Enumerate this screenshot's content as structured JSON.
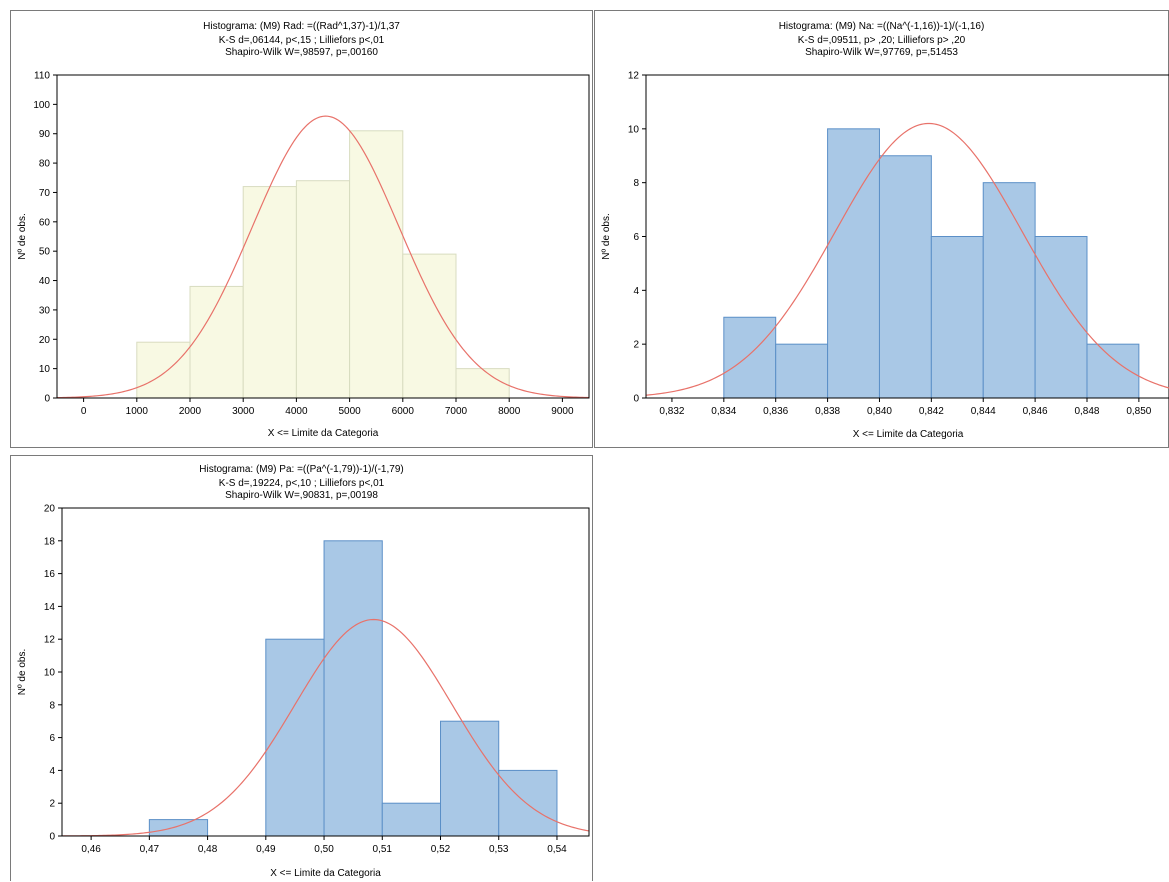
{
  "chart_data": [
    {
      "type": "bar",
      "title": "Histograma:  (M9)  Rad: =((Rad^1,37)-1)/1,37",
      "subtitle": [
        "K-S d=,06144, p<,15 ; Lilliefors p<,01",
        "Shapiro-Wilk W=,98597, p=,00160"
      ],
      "xlabel": "X <= Limite da Categoria",
      "ylabel": "Nº de obs.",
      "xlim": [
        -500,
        9500
      ],
      "ylim": [
        0,
        110
      ],
      "x_ticks": [
        0,
        1000,
        2000,
        3000,
        4000,
        5000,
        6000,
        7000,
        8000,
        9000
      ],
      "x_tick_labels": [
        "0",
        "1000",
        "2000",
        "3000",
        "4000",
        "5000",
        "6000",
        "7000",
        "8000",
        "9000"
      ],
      "y_ticks": [
        0,
        10,
        20,
        30,
        40,
        50,
        60,
        70,
        80,
        90,
        100,
        110
      ],
      "y_tick_labels": [
        "0",
        "10",
        "20",
        "30",
        "40",
        "50",
        "60",
        "70",
        "80",
        "90",
        "100",
        "110"
      ],
      "bins": [
        [
          1000,
          2000
        ],
        [
          2000,
          3000
        ],
        [
          3000,
          4000
        ],
        [
          4000,
          5000
        ],
        [
          5000,
          6000
        ],
        [
          6000,
          7000
        ],
        [
          7000,
          8000
        ]
      ],
      "values": [
        19,
        38,
        72,
        74,
        91,
        49,
        10
      ],
      "normal_fit": {
        "mean": 4550,
        "peak": 96,
        "sd": 1380
      },
      "bar_color": "#f8f9e3",
      "bar_edge": "#d8dcc0",
      "curve_color": "#e8726a",
      "grid": false
    },
    {
      "type": "bar",
      "title": "Histograma:  (M9)  Na: =((Na^(-1,16))-1)/(-1,16)",
      "subtitle": [
        "K-S d=,09511, p> ,20; Lilliefors p> ,20",
        "Shapiro-Wilk W=,97769, p=,51453"
      ],
      "xlabel": "X <= Limite da Categoria",
      "ylabel": "Nº de obs.",
      "xlim": [
        0.831,
        0.8512
      ],
      "ylim": [
        0,
        12
      ],
      "x_ticks": [
        0.832,
        0.834,
        0.836,
        0.838,
        0.84,
        0.842,
        0.844,
        0.846,
        0.848,
        0.85
      ],
      "x_tick_labels": [
        "0,832",
        "0,834",
        "0,836",
        "0,838",
        "0,840",
        "0,842",
        "0,844",
        "0,846",
        "0,848",
        "0,850"
      ],
      "y_ticks": [
        0,
        2,
        4,
        6,
        8,
        10,
        12
      ],
      "y_tick_labels": [
        "0",
        "2",
        "4",
        "6",
        "8",
        "10",
        "12"
      ],
      "bins": [
        [
          0.834,
          0.836
        ],
        [
          0.836,
          0.838
        ],
        [
          0.838,
          0.84
        ],
        [
          0.84,
          0.842
        ],
        [
          0.842,
          0.844
        ],
        [
          0.844,
          0.846
        ],
        [
          0.846,
          0.848
        ],
        [
          0.848,
          0.85
        ]
      ],
      "values": [
        3,
        2,
        10,
        9,
        6,
        8,
        6,
        2
      ],
      "normal_fit": {
        "mean": 0.8419,
        "peak": 10.2,
        "sd": 0.0036
      },
      "bar_color": "#a9c8e6",
      "bar_edge": "#5b8fc7",
      "curve_color": "#e8726a",
      "grid": false
    },
    {
      "type": "bar",
      "title": "Histograma:  (M9)  Pa: =((Pa^(-1,79))-1)/(-1,79)",
      "subtitle": [
        "K-S d=,19224, p<,10 ; Lilliefors p<,01",
        "Shapiro-Wilk W=,90831, p=,00198"
      ],
      "xlabel": "X <= Limite da Categoria",
      "ylabel": "Nº de obs.",
      "xlim": [
        0.455,
        0.5455
      ],
      "ylim": [
        0,
        20
      ],
      "x_ticks": [
        0.46,
        0.47,
        0.48,
        0.49,
        0.5,
        0.51,
        0.52,
        0.53,
        0.54
      ],
      "x_tick_labels": [
        "0,46",
        "0,47",
        "0,48",
        "0,49",
        "0,50",
        "0,51",
        "0,52",
        "0,53",
        "0,54"
      ],
      "y_ticks": [
        0,
        2,
        4,
        6,
        8,
        10,
        12,
        14,
        16,
        18,
        20
      ],
      "y_tick_labels": [
        "0",
        "2",
        "4",
        "6",
        "8",
        "10",
        "12",
        "14",
        "16",
        "18",
        "20"
      ],
      "bins": [
        [
          0.47,
          0.48
        ],
        [
          0.48,
          0.49
        ],
        [
          0.49,
          0.5
        ],
        [
          0.5,
          0.51
        ],
        [
          0.51,
          0.52
        ],
        [
          0.52,
          0.53
        ],
        [
          0.53,
          0.54
        ]
      ],
      "values": [
        1,
        0,
        12,
        18,
        2,
        7,
        4
      ],
      "normal_fit": {
        "mean": 0.5085,
        "peak": 13.2,
        "sd": 0.0135
      },
      "bar_color": "#a9c8e6",
      "bar_edge": "#5b8fc7",
      "curve_color": "#e8726a",
      "grid": false
    }
  ]
}
